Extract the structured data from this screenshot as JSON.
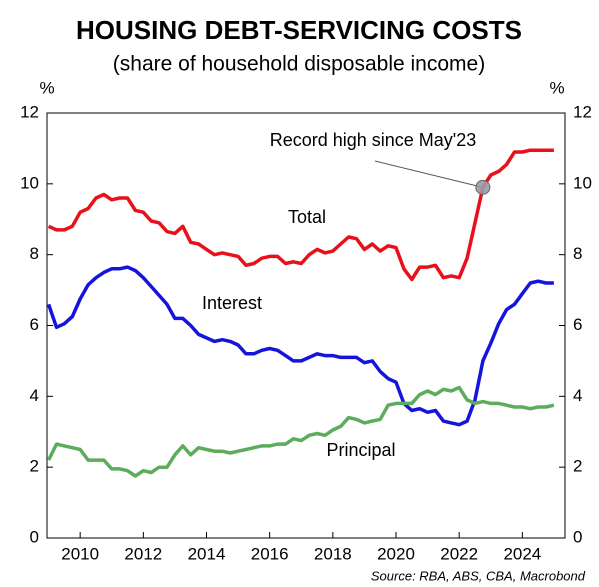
{
  "chart_data": {
    "type": "line",
    "title": "HOUSING DEBT-SERVICING COSTS",
    "subtitle": "(share of household disposable income)",
    "y_label": "%",
    "y2_label": "%",
    "source": "Source: RBA, ABS, CBA, Macrobond",
    "x": [
      2009,
      2009.25,
      2009.5,
      2009.75,
      2010,
      2010.25,
      2010.5,
      2010.75,
      2011,
      2011.25,
      2011.5,
      2011.75,
      2012,
      2012.25,
      2012.5,
      2012.75,
      2013,
      2013.25,
      2013.5,
      2013.75,
      2014,
      2014.25,
      2014.5,
      2014.75,
      2015,
      2015.25,
      2015.5,
      2015.75,
      2016,
      2016.25,
      2016.5,
      2016.75,
      2017,
      2017.25,
      2017.5,
      2017.75,
      2018,
      2018.25,
      2018.5,
      2018.75,
      2019,
      2019.25,
      2019.5,
      2019.75,
      2020,
      2020.25,
      2020.5,
      2020.75,
      2021,
      2021.25,
      2021.5,
      2021.75,
      2022,
      2022.25,
      2022.5,
      2022.75,
      2023,
      2023.25,
      2023.5,
      2023.75,
      2024,
      2024.25,
      2024.5,
      2024.75,
      2025
    ],
    "series": [
      {
        "name": "Total",
        "color": "#e8101a",
        "values": [
          8.8,
          8.7,
          8.7,
          8.8,
          9.2,
          9.3,
          9.6,
          9.7,
          9.55,
          9.6,
          9.6,
          9.25,
          9.2,
          8.95,
          8.9,
          8.65,
          8.6,
          8.8,
          8.35,
          8.3,
          8.15,
          8.0,
          8.05,
          8.0,
          7.95,
          7.7,
          7.75,
          7.9,
          7.95,
          7.95,
          7.75,
          7.8,
          7.75,
          8.0,
          8.15,
          8.05,
          8.1,
          8.3,
          8.5,
          8.45,
          8.15,
          8.3,
          8.1,
          8.25,
          8.2,
          7.6,
          7.3,
          7.65,
          7.65,
          7.7,
          7.35,
          7.4,
          7.35,
          7.9,
          8.9,
          9.9,
          10.25,
          10.35,
          10.55,
          10.9,
          10.9,
          10.95,
          10.95,
          10.95,
          10.95
        ]
      },
      {
        "name": "Interest",
        "color": "#1414dc",
        "values": [
          6.6,
          5.95,
          6.05,
          6.25,
          6.75,
          7.15,
          7.35,
          7.5,
          7.6,
          7.6,
          7.65,
          7.55,
          7.35,
          7.1,
          6.85,
          6.6,
          6.2,
          6.2,
          6.0,
          5.75,
          5.65,
          5.55,
          5.6,
          5.55,
          5.45,
          5.2,
          5.2,
          5.3,
          5.35,
          5.3,
          5.15,
          5.0,
          5.0,
          5.1,
          5.2,
          5.15,
          5.15,
          5.1,
          5.1,
          5.1,
          4.95,
          5.0,
          4.7,
          4.5,
          4.4,
          3.8,
          3.6,
          3.65,
          3.55,
          3.6,
          3.3,
          3.25,
          3.2,
          3.3,
          3.9,
          5.0,
          5.5,
          6.05,
          6.45,
          6.6,
          6.9,
          7.2,
          7.25,
          7.2,
          7.2
        ]
      },
      {
        "name": "Principal",
        "color": "#5cac5c",
        "values": [
          2.2,
          2.65,
          2.6,
          2.55,
          2.5,
          2.2,
          2.2,
          2.2,
          1.95,
          1.95,
          1.9,
          1.75,
          1.9,
          1.85,
          2.0,
          2.0,
          2.35,
          2.6,
          2.35,
          2.55,
          2.5,
          2.45,
          2.45,
          2.4,
          2.45,
          2.5,
          2.55,
          2.6,
          2.6,
          2.65,
          2.65,
          2.8,
          2.75,
          2.9,
          2.95,
          2.9,
          3.05,
          3.15,
          3.4,
          3.35,
          3.25,
          3.3,
          3.35,
          3.75,
          3.8,
          3.8,
          3.8,
          4.05,
          4.15,
          4.05,
          4.2,
          4.15,
          4.25,
          3.9,
          3.8,
          3.85,
          3.8,
          3.8,
          3.75,
          3.7,
          3.7,
          3.65,
          3.7,
          3.7,
          3.75
        ]
      }
    ],
    "annotation": {
      "text": "Record high since May'23",
      "series": 0,
      "index": 55,
      "color": "#e8101a"
    },
    "xlim": [
      2008.95,
      2025.35
    ],
    "xticks": [
      2010,
      2012,
      2014,
      2016,
      2018,
      2020,
      2022,
      2024
    ],
    "ylim": [
      0,
      12
    ],
    "yticks": [
      0,
      2,
      4,
      6,
      8,
      10,
      12
    ],
    "y2lim": [
      0,
      12
    ],
    "y2ticks": [
      0,
      2,
      4,
      6,
      8,
      10,
      12
    ],
    "grid": false
  }
}
